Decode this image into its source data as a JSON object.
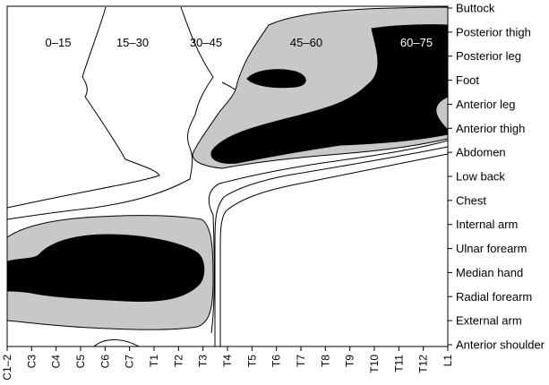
{
  "chart_data": {
    "type": "heatmap",
    "x_tick_labels": [
      "C1–2",
      "C3",
      "C4",
      "C5",
      "C6",
      "C7",
      "T1",
      "T2",
      "T3",
      "T4",
      "T5",
      "T6",
      "T7",
      "T8",
      "T9",
      "T10",
      "T11",
      "T12",
      "L1"
    ],
    "y_tick_labels": [
      "Buttock",
      "Posterior thigh",
      "Posterior leg",
      "Foot",
      "Anterior leg",
      "Anterior thigh",
      "Abdomen",
      "Low back",
      "Chest",
      "Internal arm",
      "Ulnar forearm",
      "Median hand",
      "Radial forearm",
      "External arm",
      "Anterior shoulder"
    ],
    "contour_levels": [
      "0–15",
      "15–30",
      "30–45",
      "45–60",
      "60–75"
    ],
    "level_fills": {
      "0–15": "#ffffff",
      "15–30": "#ffffff",
      "30–45": "#ffffff",
      "45–60": "#cccccc",
      "60–75": "#000000"
    },
    "grid": false,
    "legend": "inline labels at top"
  }
}
